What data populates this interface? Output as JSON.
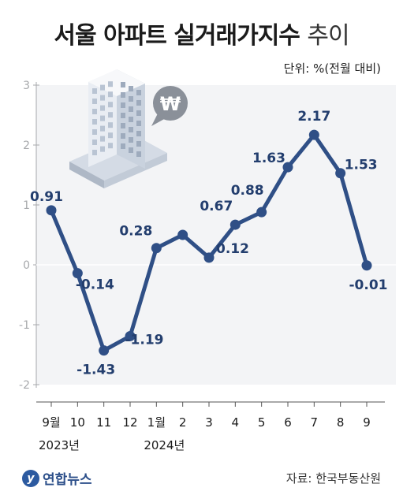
{
  "title": {
    "main": "서울 아파트 실거래가지수",
    "suffix": "추이"
  },
  "unit": "단위: %(전월 대비)",
  "source": "자료: 한국부동산원",
  "logo": {
    "mark": "y",
    "text": "연합뉴스"
  },
  "colors": {
    "line": "#2f4f86",
    "label": "#233e6e",
    "axis": "#a7a9ac",
    "panel": "#f3f4f6"
  },
  "chart_data": {
    "type": "line",
    "categories": [
      "9월",
      "10",
      "11",
      "12",
      "1월",
      "2",
      "3",
      "4",
      "5",
      "6",
      "7",
      "8",
      "9"
    ],
    "year_labels": [
      {
        "index": 0,
        "text": "2023년"
      },
      {
        "index": 4,
        "text": "2024년"
      }
    ],
    "series": [
      {
        "values": [
          0.91,
          -0.14,
          -1.43,
          -1.19,
          0.28,
          0.5,
          0.12,
          0.67,
          0.88,
          1.63,
          2.17,
          1.53,
          -0.01
        ],
        "labels": [
          "0.91",
          "-0.14",
          "-1.43",
          "-1.19",
          "0.28",
          "",
          "0.12",
          "0.67",
          "0.88",
          "1.63",
          "2.17",
          "1.53",
          "-0.01"
        ]
      }
    ],
    "yticks": [
      3,
      2,
      1,
      0,
      -1,
      -2
    ],
    "ylim": [
      -2,
      3
    ],
    "grid": false
  }
}
